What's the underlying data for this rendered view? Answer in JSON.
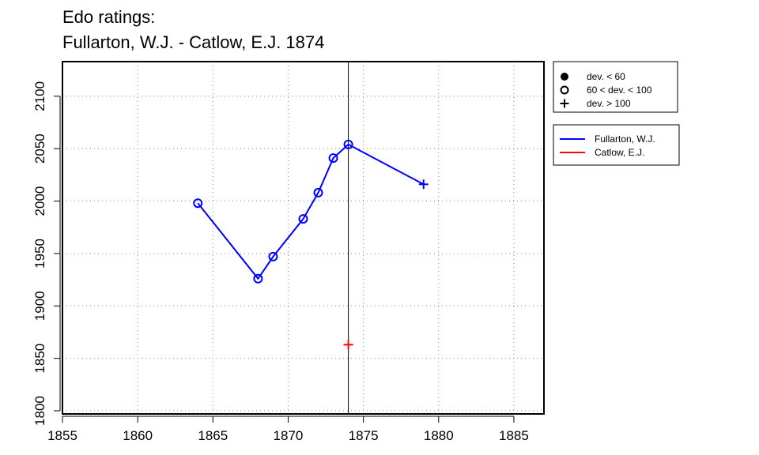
{
  "chart_data": {
    "type": "line",
    "title": "Edo ratings:",
    "subtitle": "Fullarton, W.J. - Catlow, E.J. 1874",
    "xlabel": "",
    "ylabel": "",
    "xlim": [
      1855,
      1887
    ],
    "ylim": [
      1797,
      2133
    ],
    "xticks": [
      1855,
      1860,
      1865,
      1870,
      1875,
      1880,
      1885
    ],
    "yticks": [
      1800,
      1850,
      1900,
      1950,
      2000,
      2050,
      2100
    ],
    "grid": true,
    "reference_line_x": 1874,
    "series": [
      {
        "name": "Fullarton, W.J.",
        "color": "#0000ff",
        "points": [
          {
            "x": 1864,
            "y": 1998,
            "marker": "circle-open"
          },
          {
            "x": 1868,
            "y": 1926,
            "marker": "circle-open"
          },
          {
            "x": 1869,
            "y": 1947,
            "marker": "circle-open"
          },
          {
            "x": 1871,
            "y": 1983,
            "marker": "circle-open"
          },
          {
            "x": 1872,
            "y": 2008,
            "marker": "circle-open"
          },
          {
            "x": 1873,
            "y": 2041,
            "marker": "circle-open"
          },
          {
            "x": 1874,
            "y": 2054,
            "marker": "circle-open"
          },
          {
            "x": 1879,
            "y": 2016,
            "marker": "plus"
          }
        ]
      },
      {
        "name": "Catlow, E.J.",
        "color": "#ff0000",
        "points": [
          {
            "x": 1874,
            "y": 1863,
            "marker": "plus"
          }
        ]
      }
    ],
    "marker_legend": [
      {
        "label": "dev. < 60",
        "marker": "circle-filled"
      },
      {
        "label": "60 < dev. < 100",
        "marker": "circle-open"
      },
      {
        "label": "dev. > 100",
        "marker": "plus"
      }
    ],
    "legend_position": "right"
  }
}
